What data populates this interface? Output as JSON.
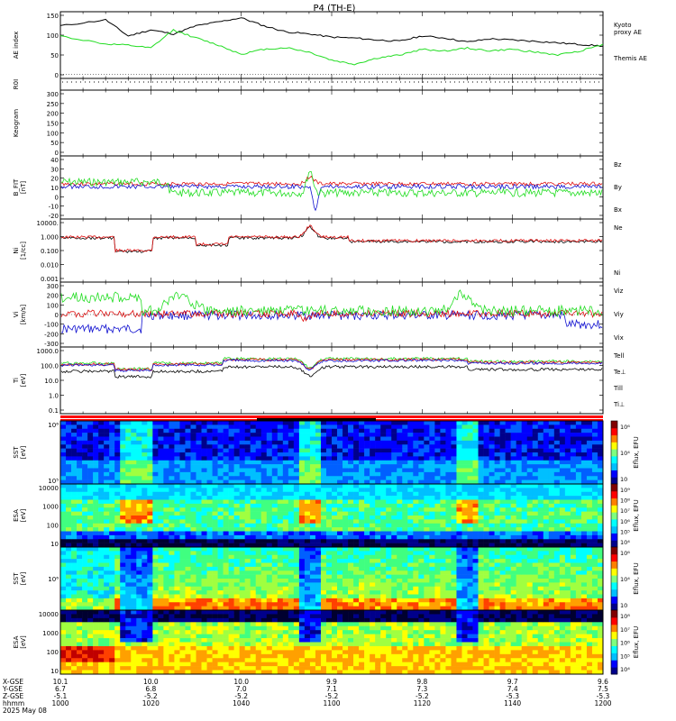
{
  "title": "P4 (TH-E)",
  "colors": {
    "black": "#000000",
    "green": "#22dd22",
    "red": "#e01010",
    "blue": "#1010d0",
    "bar_red": "#ff0000"
  },
  "panels": [
    {
      "id": "ae",
      "ylabel": [
        "AE index"
      ],
      "yticks": [
        "150",
        "100",
        "50",
        "0"
      ],
      "ylim": [
        -10,
        155
      ],
      "legend": [
        {
          "text": "Kyoto",
          "color": "green"
        },
        {
          "text": "proxy AE",
          "color": "green"
        },
        {
          "text": "Themis AE",
          "color": "black"
        }
      ]
    },
    {
      "id": "roi",
      "ylabel": [
        "R0I"
      ],
      "yticks": []
    },
    {
      "id": "keogram",
      "ylabel": [
        "Keogram"
      ],
      "yticks": [
        "300",
        "250",
        "200",
        "150",
        "100",
        "50",
        "0"
      ]
    },
    {
      "id": "bfield",
      "ylabel": [
        "B_FIT",
        "[nT]"
      ],
      "yticks": [
        "40",
        "30",
        "20",
        "10",
        "0",
        "-10",
        "-20"
      ],
      "ylim": [
        -20,
        40
      ],
      "legend": [
        {
          "text": "Bz",
          "color": "red"
        },
        {
          "text": "By",
          "color": "green"
        },
        {
          "text": "Bx",
          "color": "blue"
        }
      ]
    },
    {
      "id": "density",
      "ylabel": [
        "Ni",
        "[1/cc]"
      ],
      "yticks": [
        "10000.",
        "1.000",
        "0.100",
        "0.010",
        "0.001"
      ],
      "legend": [
        {
          "text": "Ne",
          "color": "red"
        },
        {
          "text": "Ni",
          "color": "black"
        }
      ]
    },
    {
      "id": "velocity",
      "ylabel": [
        "Vi",
        "[km/s]"
      ],
      "yticks": [
        "300",
        "200",
        "100",
        "0",
        "-100",
        "-200",
        "-300"
      ],
      "ylim": [
        -300,
        300
      ],
      "legend": [
        {
          "text": "Viz",
          "color": "red"
        },
        {
          "text": "Viy",
          "color": "green"
        },
        {
          "text": "Vix",
          "color": "blue"
        }
      ]
    },
    {
      "id": "temperature",
      "ylabel": [
        "Ti",
        "[eV]"
      ],
      "yticks": [
        "1000.0",
        "100.0",
        "10.0",
        "1.0",
        "0.1"
      ],
      "legend": [
        {
          "text": "Tell",
          "color": "black"
        },
        {
          "text": "Te⊥",
          "color": "red"
        },
        {
          "text": "Till",
          "color": "green"
        },
        {
          "text": "Ti⊥",
          "color": "blue"
        }
      ]
    },
    {
      "id": "sst_e",
      "ylabel": [
        "SST",
        "[eV]"
      ],
      "yticks": [
        "10⁶",
        "10⁵"
      ],
      "cbar_ticks": [
        "10⁶",
        "10⁴",
        "10⁲"
      ],
      "cbar_label": "Eflux, EFU"
    },
    {
      "id": "esa_e",
      "ylabel": [
        "ESA",
        "[eV]"
      ],
      "yticks": [
        "10000",
        "1000",
        "100",
        "10"
      ],
      "cbar_ticks": [
        "10⁹",
        "10⁸",
        "10⁷",
        "10⁶",
        "10⁵",
        "10⁴"
      ],
      "cbar_label": "Eflux, EFU"
    },
    {
      "id": "sst_i",
      "ylabel": [
        "SST",
        "[eV]"
      ],
      "yticks": [
        "10⁶"
      ],
      "cbar_ticks": [
        "10⁶",
        "10⁴",
        "10⁲"
      ],
      "cbar_label": "Eflux, EFU"
    },
    {
      "id": "esa_i",
      "ylabel": [
        "ESA",
        "[eV]"
      ],
      "yticks": [
        "10000",
        "1000",
        "100",
        "10"
      ],
      "cbar_ticks": [
        "10⁸",
        "10⁷",
        "10⁶",
        "10⁵",
        "10⁴"
      ],
      "cbar_label": "Eflux, EFU"
    }
  ],
  "footer": {
    "row_labels": [
      "X-GSE",
      "Y-GSE",
      "Z-GSE",
      "hhmm",
      "2025 May 08"
    ],
    "columns": [
      {
        "x": "10.1",
        "y": "6.7",
        "z": "-5.1",
        "t": "1000"
      },
      {
        "x": "10.0",
        "y": "6.8",
        "z": "-5.2",
        "t": "1020"
      },
      {
        "x": "10.0",
        "y": "7.0",
        "z": "-5.2",
        "t": "1040"
      },
      {
        "x": "9.9",
        "y": "7.1",
        "z": "-5.2",
        "t": "1100"
      },
      {
        "x": "9.8",
        "y": "7.3",
        "z": "-5.2",
        "t": "1120"
      },
      {
        "x": "9.7",
        "y": "7.4",
        "z": "-5.3",
        "t": "1140"
      },
      {
        "x": "9.6",
        "y": "7.5",
        "z": "-5.3",
        "t": "1200"
      }
    ]
  },
  "chart_data": {
    "type": "line",
    "x_unit": "hhmm",
    "xlim": [
      "1000",
      "1200"
    ],
    "x_ticks": [
      "1000",
      "1020",
      "1040",
      "1100",
      "1120",
      "1140",
      "1200"
    ],
    "ae": {
      "x": [
        "1000",
        "1010",
        "1015",
        "1020",
        "1025",
        "1030",
        "1035",
        "1040",
        "1045",
        "1050",
        "1055",
        "1100",
        "1105",
        "1110",
        "1115",
        "1120",
        "1125",
        "1130",
        "1135",
        "1140",
        "1145",
        "1150",
        "1155",
        "1200"
      ],
      "series": [
        {
          "name": "Themis AE",
          "values": [
            120,
            135,
            95,
            110,
            100,
            120,
            130,
            140,
            120,
            105,
            100,
            92,
            90,
            85,
            82,
            95,
            90,
            80,
            88,
            85,
            82,
            78,
            74,
            70
          ]
        },
        {
          "name": "Kyoto proxy AE",
          "values": [
            95,
            75,
            72,
            65,
            110,
            90,
            72,
            50,
            62,
            66,
            55,
            35,
            25,
            40,
            48,
            62,
            58,
            65,
            58,
            62,
            55,
            48,
            58,
            75
          ]
        }
      ]
    }
  }
}
